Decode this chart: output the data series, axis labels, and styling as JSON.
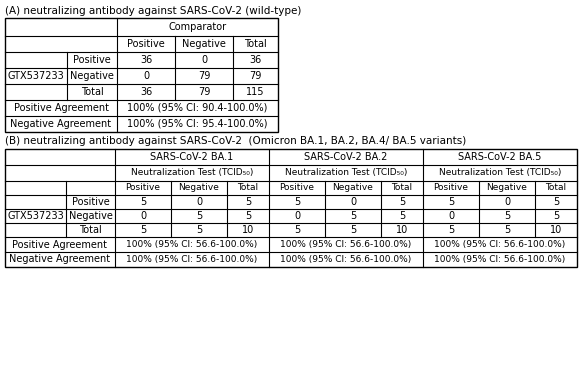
{
  "title_A": "(A) neutralizing antibody against SARS-CoV-2 (wild-type)",
  "title_B": "(B) neutralizing antibody against SARS-CoV-2  (Omicron BA.1, BA.2, BA.4/ BA.5 variants)",
  "gtx_label": "GTX537233",
  "tableA": {
    "comparator_label": "Comparator",
    "col_headers": [
      "Positive",
      "Negative",
      "Total"
    ],
    "row_labels": [
      "Positive",
      "Negative",
      "Total"
    ],
    "data": [
      [
        36,
        0,
        36
      ],
      [
        0,
        79,
        79
      ],
      [
        36,
        79,
        115
      ]
    ],
    "positive_agreement": "100% (95% CI: 90.4-100.0%)",
    "negative_agreement": "100% (95% CI: 95.4-100.0%)"
  },
  "tableB": {
    "col_group_headers": [
      "SARS-CoV-2 BA.1",
      "SARS-CoV-2 BA.2",
      "SARS-CoV-2 BA.5"
    ],
    "col_headers": [
      "Positive",
      "Negative",
      "Total"
    ],
    "row_labels": [
      "Positive",
      "Negative",
      "Total"
    ],
    "data": [
      [
        [
          5,
          0,
          5
        ],
        [
          0,
          5,
          5
        ],
        [
          5,
          5,
          10
        ]
      ],
      [
        [
          5,
          0,
          5
        ],
        [
          0,
          5,
          5
        ],
        [
          5,
          5,
          10
        ]
      ],
      [
        [
          5,
          0,
          5
        ],
        [
          0,
          5,
          5
        ],
        [
          5,
          5,
          10
        ]
      ]
    ],
    "positive_agreement": "100% (95% CI: 56.6-100.0%)",
    "negative_agreement": "100% (95% CI: 56.6-100.0%)"
  },
  "bg_color": "#ffffff",
  "line_color": "#000000"
}
